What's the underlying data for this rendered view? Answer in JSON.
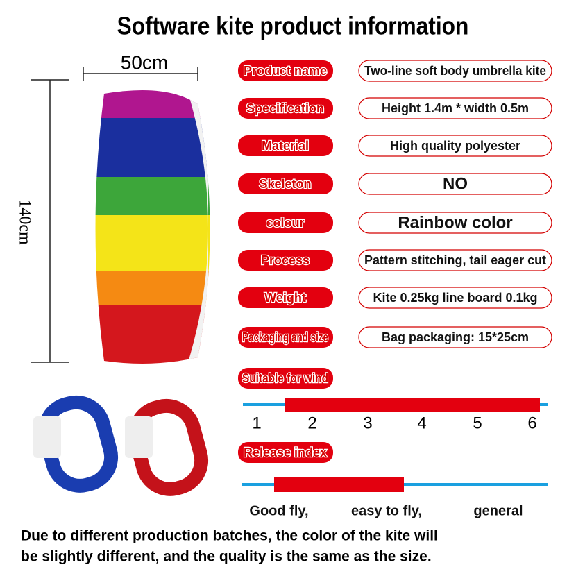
{
  "title": "Software kite product information",
  "kite": {
    "width_label": "50cm",
    "height_label": "140cm"
  },
  "specs": [
    {
      "label": "Product name",
      "value": "Two-line soft body umbrella kite"
    },
    {
      "label": "Specification",
      "value": "Height 1.4m * width 0.5m"
    },
    {
      "label": "Material",
      "value": "High quality polyester"
    },
    {
      "label": "Skeleton",
      "value": "NO"
    },
    {
      "label": "colour",
      "value": "Rainbow color"
    },
    {
      "label": "Process",
      "value": "Pattern stitching, tail eager cut"
    },
    {
      "label": "Weight",
      "value": "Kite 0.25kg line board 0.1kg"
    },
    {
      "label": "Packaging and size",
      "value": "Bag packaging: 15*25cm"
    }
  ],
  "wind": {
    "label": "Suitable for wind",
    "scale": [
      "1",
      "2",
      "3",
      "4",
      "5",
      "6"
    ]
  },
  "release": {
    "label": "Release index",
    "levels": [
      "Good fly,",
      "easy to fly,",
      "general"
    ]
  },
  "footer": [
    "Due to different production batches, the color of the kite will",
    "be slightly different, and the quality is the same as the size."
  ]
}
